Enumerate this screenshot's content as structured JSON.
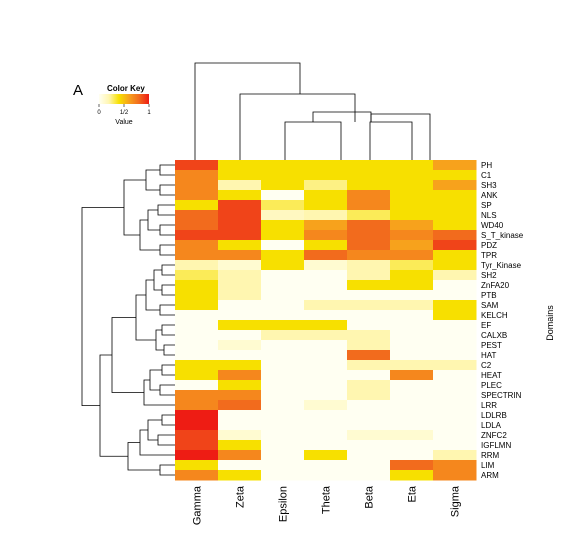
{
  "panel_label": "A",
  "color_key": {
    "title": "Color Key",
    "xlabel": "Value",
    "ticks": [
      "0",
      "1/2",
      "1"
    ],
    "colors": [
      "#fffff2",
      "#fff6b0",
      "#f7e000",
      "#f7a21c",
      "#f26b1d",
      "#ee1c14"
    ]
  },
  "chart_data": {
    "type": "heatmap",
    "title": "",
    "xlabel": "",
    "ylabel": "Domains",
    "vlim": [
      0,
      1
    ],
    "columns": [
      "Gamma",
      "Zeta",
      "Epsilon",
      "Theta",
      "Beta",
      "Eta",
      "Sigma"
    ],
    "rows": [
      "PH",
      "C1",
      "SH3",
      "ANK",
      "SP",
      "NLS",
      "WD40",
      "S_T_kinase",
      "PDZ",
      "TPR",
      "Tyr_Kinase",
      "SH2",
      "ZnFA20",
      "PTB",
      "SAM",
      "KELCH",
      "EF",
      "CALXB",
      "PEST",
      "HAT",
      "C2",
      "HEAT",
      "PLEC",
      "SPECTRIN",
      "LRR",
      "LDLRB",
      "LDLA",
      "ZNFC2",
      "IGFLMN",
      "RRM",
      "LIM",
      "ARM"
    ],
    "values": [
      [
        0.9,
        0.4,
        0.4,
        0.4,
        0.4,
        0.4,
        0.6
      ],
      [
        0.7,
        0.4,
        0.4,
        0.4,
        0.4,
        0.4,
        0.4
      ],
      [
        0.7,
        0.2,
        0.4,
        0.25,
        0.4,
        0.4,
        0.6
      ],
      [
        0.7,
        0.4,
        0.0,
        0.4,
        0.7,
        0.4,
        0.4
      ],
      [
        0.4,
        0.9,
        0.3,
        0.4,
        0.7,
        0.4,
        0.4
      ],
      [
        0.8,
        0.9,
        0.15,
        0.2,
        0.3,
        0.4,
        0.4
      ],
      [
        0.8,
        0.9,
        0.4,
        0.6,
        0.8,
        0.6,
        0.4
      ],
      [
        0.9,
        0.9,
        0.4,
        0.7,
        0.8,
        0.7,
        0.8
      ],
      [
        0.7,
        0.4,
        0.0,
        0.4,
        0.8,
        0.6,
        0.9
      ],
      [
        0.7,
        0.7,
        0.4,
        0.8,
        0.7,
        0.7,
        0.4
      ],
      [
        0.2,
        0.1,
        0.4,
        0.1,
        0.2,
        0.3,
        0.4
      ],
      [
        0.3,
        0.2,
        0.0,
        0.0,
        0.2,
        0.4,
        0.2
      ],
      [
        0.4,
        0.2,
        0.0,
        0.0,
        0.4,
        0.4,
        0.0
      ],
      [
        0.4,
        0.2,
        0.0,
        0.0,
        0.0,
        0.0,
        0.0
      ],
      [
        0.4,
        0.0,
        0.0,
        0.2,
        0.2,
        0.2,
        0.4
      ],
      [
        0.0,
        0.0,
        0.0,
        0.0,
        0.0,
        0.0,
        0.4
      ],
      [
        0.0,
        0.4,
        0.4,
        0.4,
        0.0,
        0.0,
        0.0
      ],
      [
        0.0,
        0.0,
        0.2,
        0.2,
        0.2,
        0.0,
        0.0
      ],
      [
        0.0,
        0.1,
        0.0,
        0.0,
        0.2,
        0.0,
        0.0
      ],
      [
        0.0,
        0.0,
        0.0,
        0.0,
        0.8,
        0.0,
        0.0
      ],
      [
        0.4,
        0.4,
        0.0,
        0.0,
        0.2,
        0.2,
        0.2
      ],
      [
        0.4,
        0.7,
        0.0,
        0.0,
        0.0,
        0.7,
        0.0
      ],
      [
        0.0,
        0.4,
        0.0,
        0.0,
        0.2,
        0.0,
        0.0
      ],
      [
        0.7,
        0.7,
        0.0,
        0.0,
        0.2,
        0.0,
        0.0
      ],
      [
        0.7,
        0.8,
        0.0,
        0.1,
        0.0,
        0.0,
        0.0
      ],
      [
        1.0,
        0.0,
        0.0,
        0.0,
        0.0,
        0.0,
        0.0
      ],
      [
        1.0,
        0.0,
        0.0,
        0.0,
        0.0,
        0.0,
        0.0
      ],
      [
        0.9,
        0.1,
        0.0,
        0.0,
        0.1,
        0.1,
        0.0
      ],
      [
        0.9,
        0.4,
        0.0,
        0.0,
        0.0,
        0.0,
        0.0
      ],
      [
        1.0,
        0.7,
        0.0,
        0.4,
        0.0,
        0.0,
        0.2
      ],
      [
        0.4,
        0.0,
        0.0,
        0.0,
        0.0,
        0.8,
        0.7
      ],
      [
        0.7,
        0.4,
        0.0,
        0.0,
        0.0,
        0.4,
        0.7
      ]
    ]
  }
}
